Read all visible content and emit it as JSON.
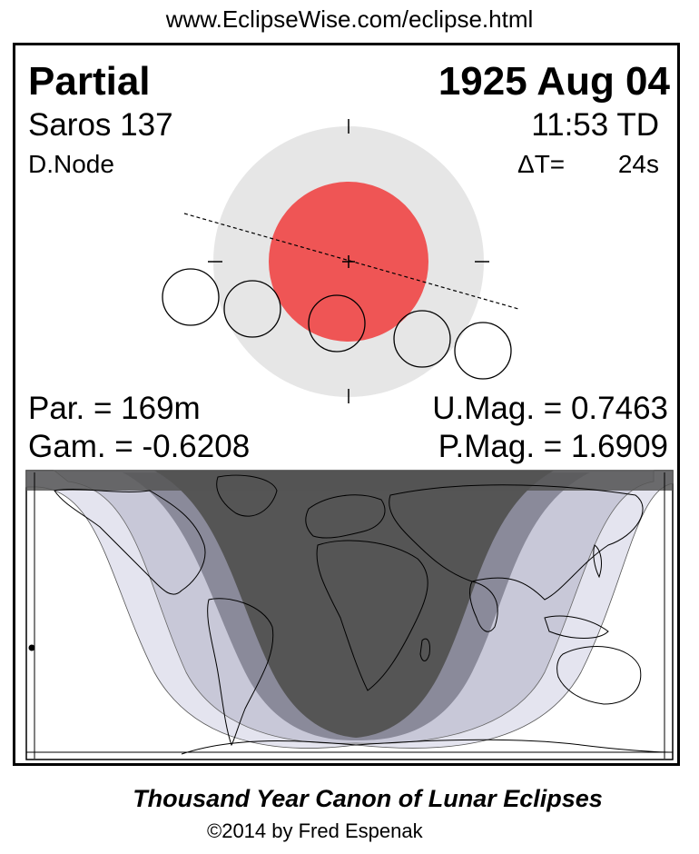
{
  "header": {
    "url": "www.EclipseWise.com/eclipse.html"
  },
  "eclipse": {
    "type": "Partial",
    "date": "1925 Aug 04",
    "saros": "Saros 137",
    "time": "11:53 TD",
    "node": "D.Node",
    "delta_t_label": "ΔT=",
    "delta_t_value": "24s",
    "par": "Par. = 169m",
    "gam": "Gam. = -0.6208",
    "umag": "U.Mag. = 0.7463",
    "pmag": "P.Mag. = 1.6909"
  },
  "colors": {
    "umbra": "#ef5555",
    "penumbra": "#e6e6e6",
    "map_night": "#555555",
    "map_partial": "#8a8a9a",
    "map_penumbral": "#c8c8d8",
    "map_light": "#e4e4ef"
  },
  "footer": {
    "title": "Thousand Year Canon of Lunar Eclipses",
    "credit": "©2014 by Fred Espenak"
  }
}
